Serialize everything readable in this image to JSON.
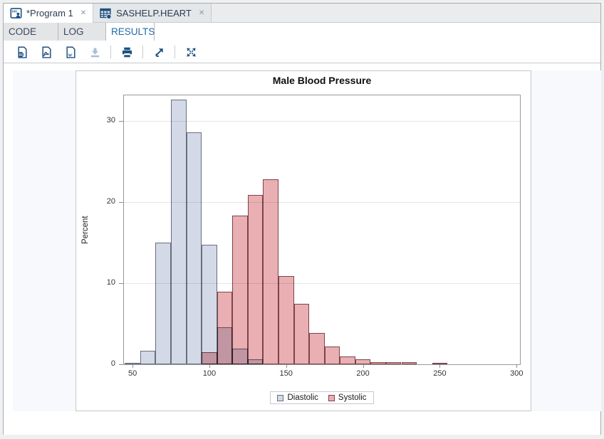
{
  "window": {
    "tabs": [
      {
        "label": "*Program 1",
        "icon": "program-icon",
        "active": true,
        "close_glyph": "✕"
      },
      {
        "label": "SASHELP.HEART",
        "icon": "table-icon",
        "active": false,
        "close_glyph": "✕"
      }
    ],
    "subtabs": [
      {
        "label": "CODE",
        "active": false
      },
      {
        "label": "LOG",
        "active": false
      },
      {
        "label": "RESULTS",
        "active": true
      }
    ],
    "toolbar": {
      "buttons": [
        {
          "name": "download-html",
          "icon": "html-file-icon",
          "enabled": true
        },
        {
          "name": "download-pdf",
          "icon": "pdf-file-icon",
          "enabled": true
        },
        {
          "name": "download-rtf",
          "icon": "word-file-icon",
          "enabled": true
        },
        {
          "name": "download",
          "icon": "download-icon",
          "enabled": false
        },
        {
          "name": "print",
          "icon": "printer-icon",
          "enabled": true
        },
        {
          "name": "open-in-new-window",
          "icon": "open-external-icon",
          "enabled": true
        },
        {
          "name": "maximize",
          "icon": "maximize-icon",
          "enabled": true
        }
      ]
    }
  },
  "colors": {
    "accent_navy": "#1d5181",
    "disabled_icon": "#a9bfd3",
    "active_subtab_text": "#2268a8",
    "ods_band_bg": "#f8f9fc",
    "diastolic_fill": "#d3d9e7",
    "diastolic_border": "#67707f",
    "systolic_fill": "#e9afb2",
    "systolic_border": "#7c444c"
  },
  "chart_data": {
    "type": "bar",
    "variant": "overlaid-histogram",
    "title": "Male Blood Pressure",
    "xlabel": "",
    "ylabel": "Percent",
    "bin_width": 10,
    "x_ticks": [
      50,
      100,
      150,
      200,
      250,
      300
    ],
    "y_ticks": [
      0,
      10,
      20,
      30
    ],
    "x_range": [
      44.4,
      302.2
    ],
    "y_range": [
      0,
      33.2
    ],
    "grid": true,
    "legend_position": "bottom-center",
    "series": [
      {
        "name": "Diastolic",
        "fill": "#d3d9e7",
        "border": "#67707f",
        "midpoints": [
          50,
          60,
          70,
          80,
          90,
          100,
          110,
          120,
          130
        ],
        "values": [
          0.15,
          1.7,
          15.0,
          32.7,
          28.6,
          14.8,
          4.6,
          1.9,
          0.6
        ]
      },
      {
        "name": "Systolic",
        "fill": "#e9afb2",
        "border": "#7c444c",
        "midpoints": [
          100,
          110,
          120,
          130,
          140,
          150,
          160,
          170,
          180,
          190,
          200,
          210,
          220,
          230,
          250
        ],
        "values": [
          1.5,
          9.0,
          18.4,
          20.9,
          22.8,
          10.9,
          7.5,
          3.9,
          2.2,
          1.0,
          0.6,
          0.3,
          0.3,
          0.3,
          0.15
        ]
      }
    ]
  }
}
